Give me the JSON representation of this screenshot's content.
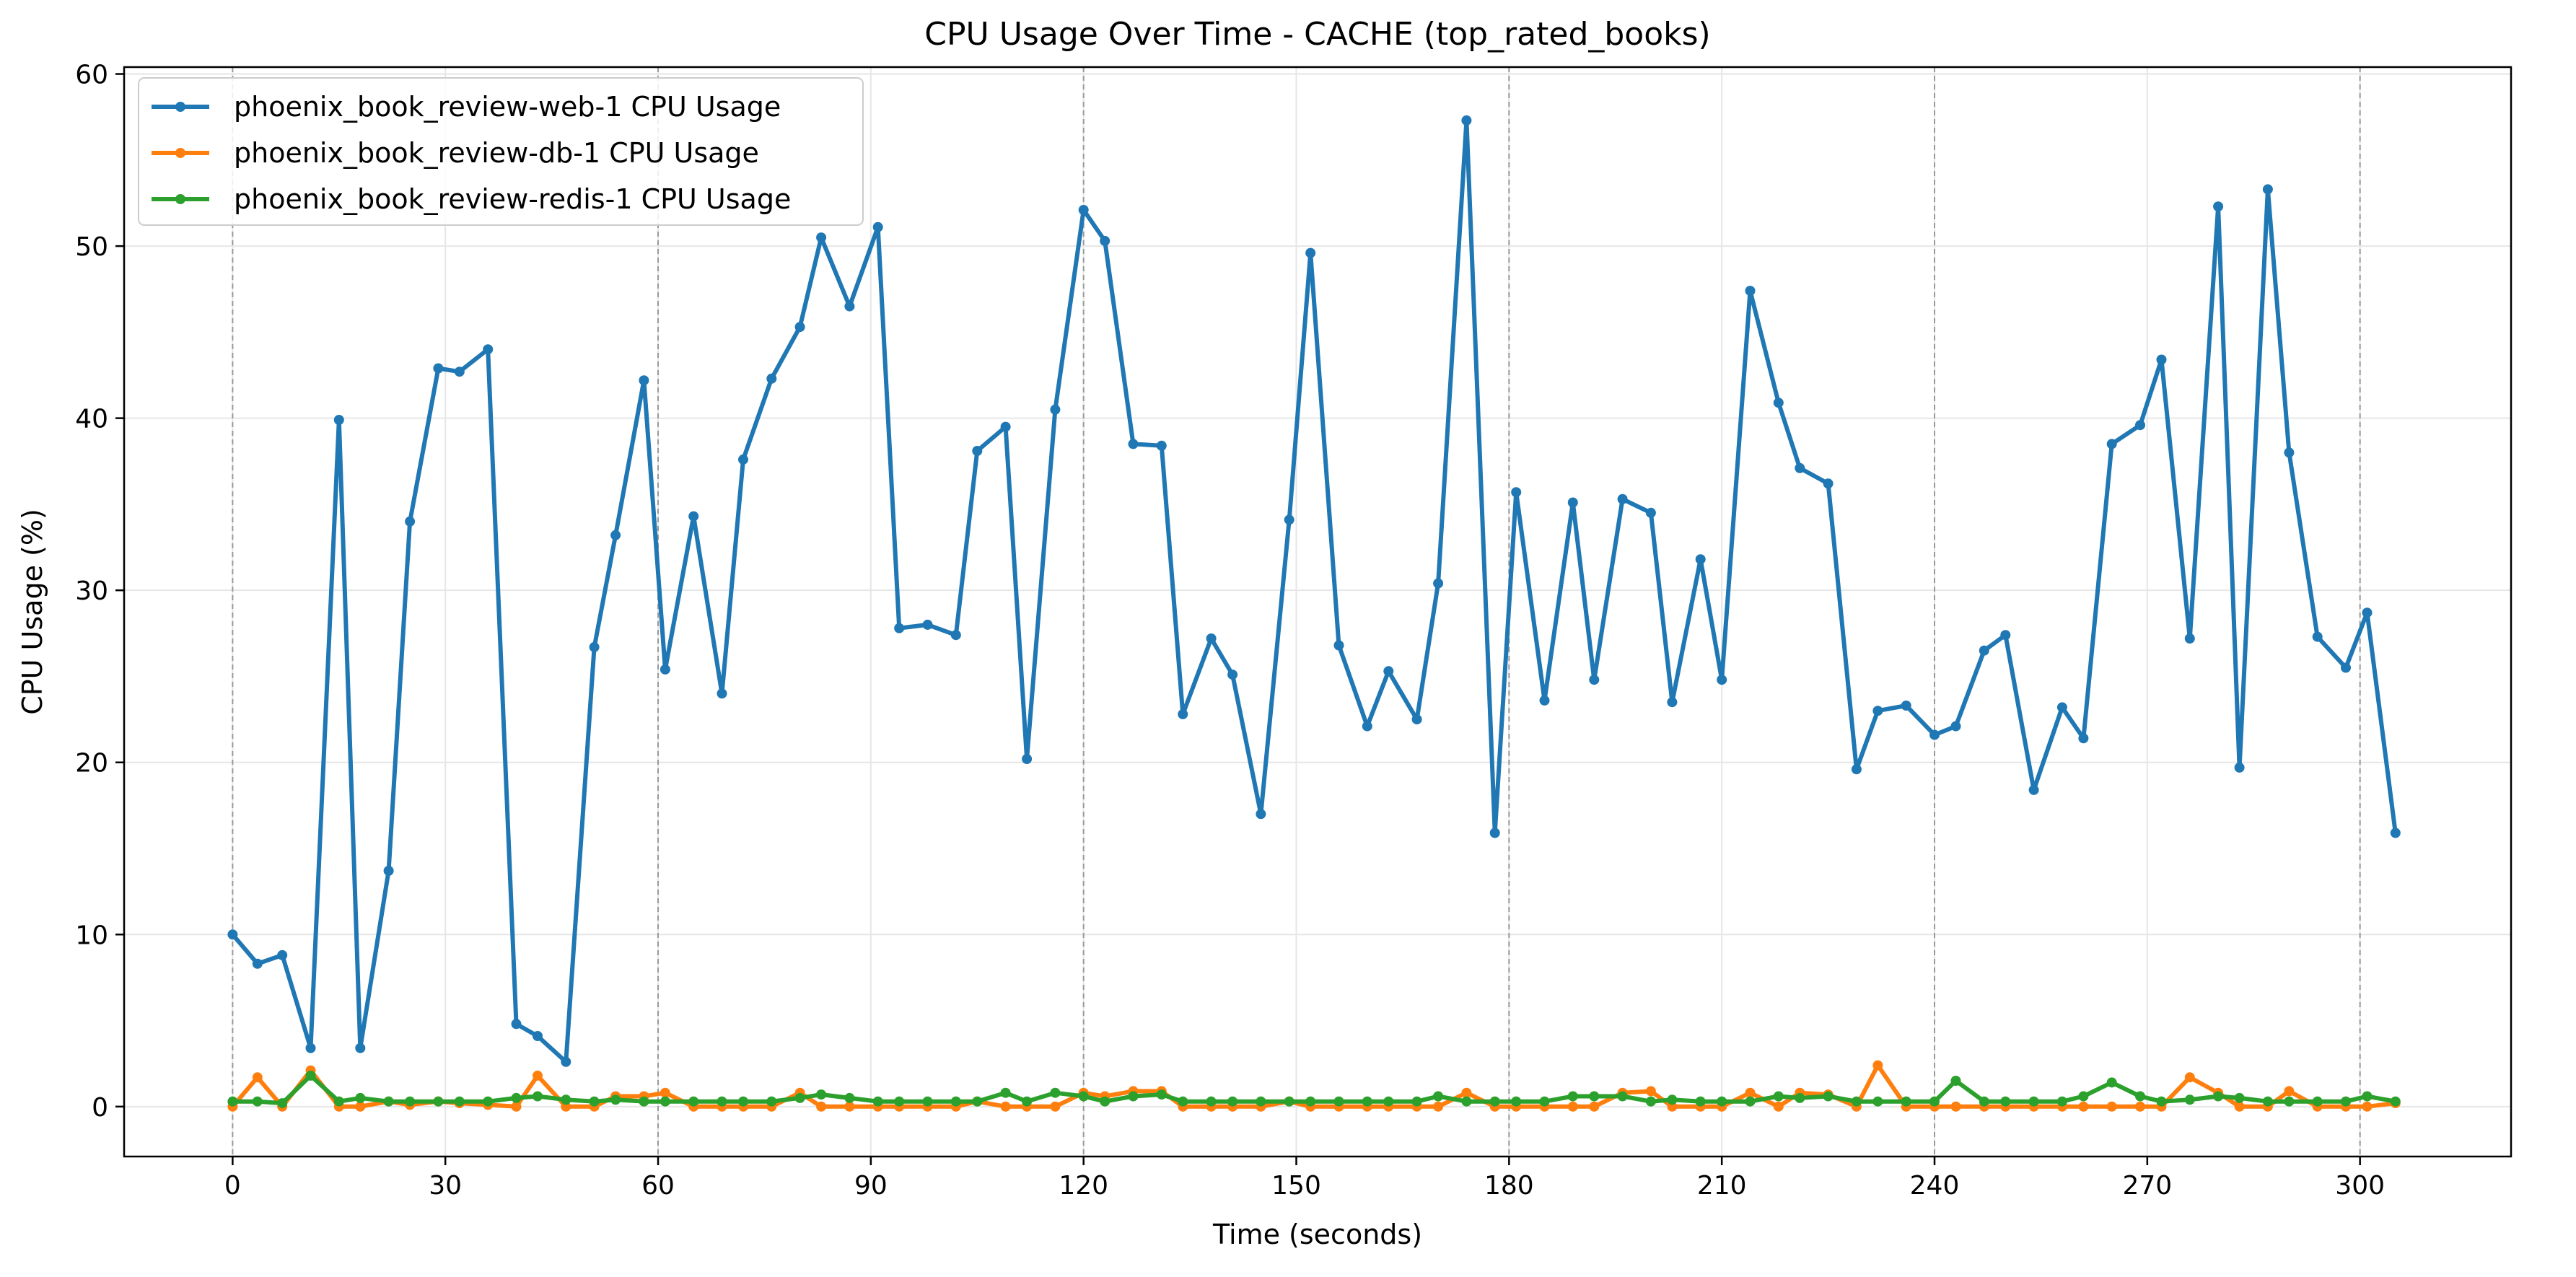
{
  "chart_data": {
    "type": "line",
    "title": "CPU Usage Over Time - CACHE (top_rated_books)",
    "xlabel": "Time (seconds)",
    "ylabel": "CPU Usage (%)",
    "xlim": [
      -15.3,
      321.3
    ],
    "ylim": [
      -2.9,
      60.4
    ],
    "xticks": [
      0,
      30,
      60,
      90,
      120,
      150,
      180,
      210,
      240,
      270,
      300
    ],
    "yticks": [
      0,
      10,
      20,
      30,
      40,
      50,
      60
    ],
    "vlines": [
      0,
      60,
      120,
      180,
      240,
      300
    ],
    "grid": true,
    "legend": "upper left",
    "x": [
      0.0,
      3.5,
      7.0,
      11.0,
      15.0,
      18.0,
      22.0,
      25.0,
      29.0,
      32.0,
      36.0,
      40.0,
      43.0,
      47.0,
      51.0,
      54.0,
      58.0,
      61.0,
      65.0,
      69.0,
      72.0,
      76.0,
      80.0,
      83.0,
      87.0,
      91.0,
      94.0,
      98.0,
      102.0,
      105.0,
      109.0,
      112.0,
      116.0,
      120.0,
      123.0,
      127.0,
      131.0,
      134.0,
      138.0,
      141.0,
      145.0,
      149.0,
      152.0,
      156.0,
      160.0,
      163.0,
      167.0,
      170.0,
      174.0,
      178.0,
      181.0,
      185.0,
      189.0,
      192.0,
      196.0,
      200.0,
      203.0,
      207.0,
      210.0,
      214.0,
      218.0,
      221.0,
      225.0,
      229.0,
      232.0,
      236.0,
      240.0,
      243.0,
      247.0,
      250.0,
      254.0,
      258.0,
      261.0,
      265.0,
      269.0,
      272.0,
      276.0,
      280.0,
      283.0,
      287.0,
      290.0,
      294.0,
      298.0,
      301.0,
      305.0
    ],
    "series": [
      {
        "name": "phoenix_book_review-web-1 CPU Usage",
        "color": "#1f77b4",
        "values": [
          10.0,
          8.3,
          8.8,
          3.4,
          39.9,
          3.4,
          13.7,
          34.0,
          42.9,
          42.7,
          44.0,
          4.8,
          4.1,
          2.6,
          26.7,
          33.2,
          42.2,
          25.4,
          34.3,
          24.0,
          37.6,
          42.3,
          45.3,
          50.5,
          46.5,
          51.1,
          27.8,
          28.0,
          27.4,
          38.1,
          39.5,
          20.2,
          40.5,
          52.1,
          50.3,
          38.5,
          38.4,
          22.8,
          27.2,
          25.1,
          17.0,
          34.1,
          49.6,
          26.8,
          22.1,
          25.3,
          22.5,
          30.4,
          57.3,
          15.9,
          35.7,
          23.6,
          35.1,
          24.8,
          35.3,
          34.5,
          23.5,
          31.8,
          24.8,
          47.4,
          40.9,
          37.1,
          36.2,
          19.6,
          23.0,
          23.3,
          21.6,
          22.1,
          26.5,
          27.4,
          18.4,
          23.2,
          21.4,
          38.5,
          39.6,
          43.4,
          27.2,
          52.3,
          19.7,
          53.3,
          38.0,
          27.3,
          25.5,
          28.7,
          15.9
        ]
      },
      {
        "name": "phoenix_book_review-db-1 CPU Usage",
        "color": "#ff7f0e",
        "values": [
          0.0,
          1.7,
          0.0,
          2.1,
          0.0,
          0.0,
          0.3,
          0.1,
          0.3,
          0.2,
          0.1,
          0.0,
          1.8,
          0.0,
          0.0,
          0.6,
          0.6,
          0.8,
          0.0,
          0.0,
          0.0,
          0.0,
          0.8,
          0.0,
          0.0,
          0.0,
          0.0,
          0.0,
          0.0,
          0.3,
          0.0,
          0.0,
          0.0,
          0.8,
          0.6,
          0.9,
          0.9,
          0.0,
          0.0,
          0.0,
          0.0,
          0.3,
          0.0,
          0.0,
          0.0,
          0.0,
          0.0,
          0.0,
          0.8,
          0.0,
          0.0,
          0.0,
          0.0,
          0.0,
          0.8,
          0.9,
          0.0,
          0.0,
          0.0,
          0.8,
          0.0,
          0.8,
          0.7,
          0.0,
          2.4,
          0.0,
          0.0,
          0.0,
          0.0,
          0.0,
          0.0,
          0.0,
          0.0,
          0.0,
          0.0,
          0.0,
          1.7,
          0.8,
          0.0,
          0.0,
          0.9,
          0.0,
          0.0,
          0.0,
          0.2
        ]
      },
      {
        "name": "phoenix_book_review-redis-1 CPU Usage",
        "color": "#2ca02c",
        "values": [
          0.3,
          0.3,
          0.2,
          1.8,
          0.3,
          0.5,
          0.3,
          0.3,
          0.3,
          0.3,
          0.3,
          0.5,
          0.6,
          0.4,
          0.3,
          0.4,
          0.3,
          0.3,
          0.3,
          0.3,
          0.3,
          0.3,
          0.5,
          0.7,
          0.5,
          0.3,
          0.3,
          0.3,
          0.3,
          0.3,
          0.8,
          0.3,
          0.8,
          0.6,
          0.3,
          0.6,
          0.7,
          0.3,
          0.3,
          0.3,
          0.3,
          0.3,
          0.3,
          0.3,
          0.3,
          0.3,
          0.3,
          0.6,
          0.3,
          0.3,
          0.3,
          0.3,
          0.6,
          0.6,
          0.6,
          0.3,
          0.4,
          0.3,
          0.3,
          0.3,
          0.6,
          0.5,
          0.6,
          0.3,
          0.3,
          0.3,
          0.3,
          1.5,
          0.3,
          0.3,
          0.3,
          0.3,
          0.6,
          1.4,
          0.6,
          0.3,
          0.4,
          0.6,
          0.5,
          0.3,
          0.3,
          0.3,
          0.3,
          0.6,
          0.3
        ]
      }
    ]
  }
}
